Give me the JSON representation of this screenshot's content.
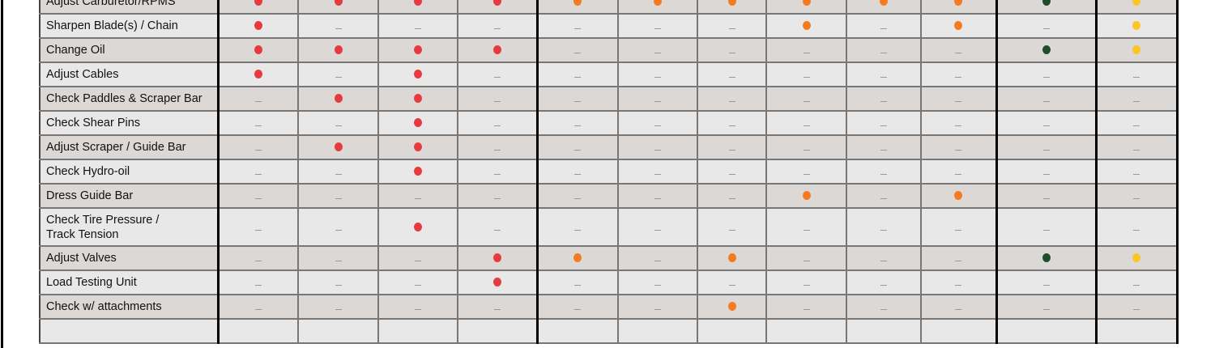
{
  "legend_colors": {
    "R": "#e63a3f",
    "O": "#f47b20",
    "G": "#1e4d2b",
    "Y": "#fcc526"
  },
  "marks": {
    "R": "red-dot",
    "O": "orange-dot",
    "G": "green-dot",
    "Y": "yellow-dot",
    "-": "dash"
  },
  "rows": [
    {
      "label": "Adjust Carburetor/RPMS",
      "cells": [
        "R",
        "R",
        "R",
        "R",
        "O",
        "O",
        "O",
        "O",
        "O",
        "O",
        "G",
        "Y"
      ]
    },
    {
      "label": "Sharpen Blade(s) / Chain",
      "cells": [
        "R",
        "-",
        "-",
        "-",
        "-",
        "-",
        "-",
        "O",
        "-",
        "O",
        "-",
        "Y"
      ]
    },
    {
      "label": "Change Oil",
      "cells": [
        "R",
        "R",
        "R",
        "R",
        "-",
        "-",
        "-",
        "-",
        "-",
        "-",
        "G",
        "Y"
      ]
    },
    {
      "label": "Adjust Cables",
      "cells": [
        "R",
        "-",
        "R",
        "-",
        "-",
        "-",
        "-",
        "-",
        "-",
        "-",
        "-",
        "-"
      ]
    },
    {
      "label": "Check Paddles & Scraper Bar",
      "cells": [
        "-",
        "R",
        "R",
        "-",
        "-",
        "-",
        "-",
        "-",
        "-",
        "-",
        "-",
        "-"
      ]
    },
    {
      "label": "Check Shear Pins",
      "cells": [
        "-",
        "-",
        "R",
        "-",
        "-",
        "-",
        "-",
        "-",
        "-",
        "-",
        "-",
        "-"
      ]
    },
    {
      "label": "Adjust Scraper / Guide Bar",
      "cells": [
        "-",
        "R",
        "R",
        "-",
        "-",
        "-",
        "-",
        "-",
        "-",
        "-",
        "-",
        "-"
      ]
    },
    {
      "label": "Check Hydro-oil",
      "cells": [
        "-",
        "-",
        "R",
        "-",
        "-",
        "-",
        "-",
        "-",
        "-",
        "-",
        "-",
        "-"
      ]
    },
    {
      "label": "Dress Guide Bar",
      "cells": [
        "-",
        "-",
        "-",
        "-",
        "-",
        "-",
        "-",
        "O",
        "-",
        "O",
        "-",
        "-"
      ]
    },
    {
      "label": "Check Tire Pressure / Track Tension",
      "cells": [
        "-",
        "-",
        "R",
        "-",
        "-",
        "-",
        "-",
        "-",
        "-",
        "-",
        "-",
        "-"
      ],
      "tall": true
    },
    {
      "label": "Adjust Valves",
      "cells": [
        "-",
        "-",
        "-",
        "R",
        "O",
        "-",
        "O",
        "-",
        "-",
        "-",
        "G",
        "Y"
      ]
    },
    {
      "label": "Load Testing Unit",
      "cells": [
        "-",
        "-",
        "-",
        "R",
        "-",
        "-",
        "-",
        "-",
        "-",
        "-",
        "-",
        "-"
      ]
    },
    {
      "label": "Check w/ attachments",
      "cells": [
        "-",
        "-",
        "-",
        "-",
        "-",
        "-",
        "O",
        "-",
        "-",
        "-",
        "-",
        "-"
      ]
    }
  ]
}
